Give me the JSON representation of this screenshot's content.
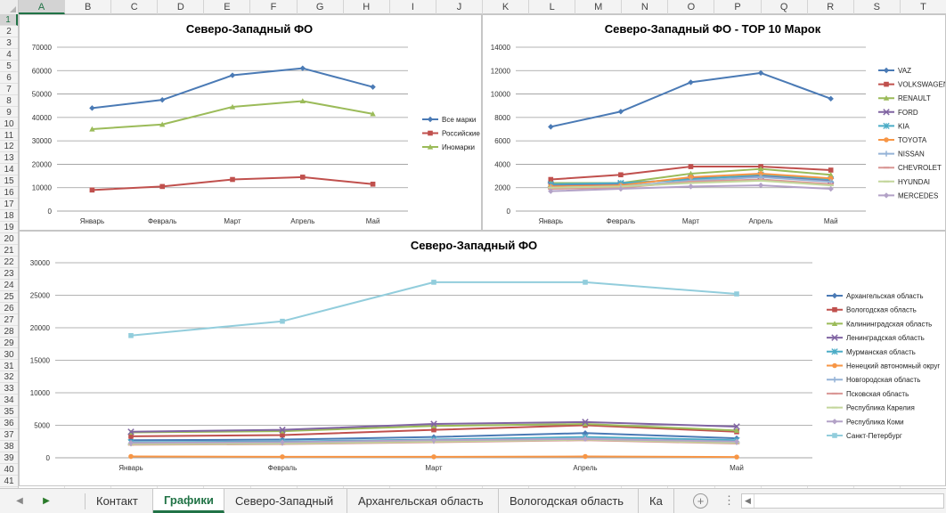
{
  "columns": [
    "A",
    "B",
    "C",
    "D",
    "E",
    "F",
    "G",
    "H",
    "I",
    "J",
    "K",
    "L",
    "M",
    "N",
    "O",
    "P",
    "Q",
    "R",
    "S",
    "T"
  ],
  "active_column": "A",
  "rows": [
    "1",
    "2",
    "3",
    "4",
    "5",
    "6",
    "7",
    "8",
    "9",
    "10",
    "11",
    "12",
    "13",
    "14",
    "15",
    "16",
    "17",
    "18",
    "19",
    "20",
    "21",
    "22",
    "23",
    "24",
    "25",
    "26",
    "27",
    "28",
    "29",
    "30",
    "31",
    "32",
    "33",
    "34",
    "35",
    "36",
    "37",
    "38",
    "39",
    "40",
    "41"
  ],
  "active_row": "1",
  "tabs": {
    "nav_prev": "◀",
    "nav_next": "▶",
    "sheets": [
      "Контакт",
      "Графики",
      "Северо-Западный",
      "Архангельская область",
      "Вологодская область",
      "Ка"
    ],
    "active_sheet": "Графики",
    "add_label": "+",
    "more_label": "⋮",
    "scroll_left": "◀"
  },
  "colors": {
    "accent": "#217346"
  },
  "chart_data": [
    {
      "type": "line",
      "title": "Северо-Западный ФО",
      "categories": [
        "Январь",
        "Февраль",
        "Март",
        "Апрель",
        "Май"
      ],
      "ylim": [
        0,
        70000
      ],
      "yticks": [
        "0",
        "10000",
        "20000",
        "30000",
        "40000",
        "50000",
        "60000",
        "70000"
      ],
      "grid": true,
      "legend": "right",
      "series": [
        {
          "name": "Все марки",
          "color": "#4a7ab5",
          "marker": "diamond",
          "values": [
            44000,
            47500,
            58000,
            61000,
            53000
          ]
        },
        {
          "name": "Российские",
          "color": "#c0504d",
          "marker": "square",
          "values": [
            9000,
            10500,
            13500,
            14500,
            11500
          ]
        },
        {
          "name": "Иномарки",
          "color": "#9bbb59",
          "marker": "triangle",
          "values": [
            35000,
            37000,
            44500,
            47000,
            41500
          ]
        }
      ]
    },
    {
      "type": "line",
      "title": "Северо-Западный ФО - TOP 10 Марок",
      "categories": [
        "Январь",
        "Февраль",
        "Март",
        "Апрель",
        "Май"
      ],
      "ylim": [
        0,
        14000
      ],
      "yticks": [
        "0",
        "2000",
        "4000",
        "6000",
        "8000",
        "10000",
        "12000",
        "14000"
      ],
      "grid": true,
      "legend": "right",
      "series": [
        {
          "name": "VAZ",
          "color": "#4a7ab5",
          "marker": "diamond",
          "values": [
            7200,
            8500,
            11000,
            11800,
            9600
          ]
        },
        {
          "name": "VOLKSWAGEN",
          "color": "#c0504d",
          "marker": "square",
          "values": [
            2700,
            3100,
            3800,
            3800,
            3500
          ]
        },
        {
          "name": "RENAULT",
          "color": "#9bbb59",
          "marker": "triangle",
          "values": [
            2400,
            2400,
            3200,
            3600,
            3100
          ]
        },
        {
          "name": "FORD",
          "color": "#8064a2",
          "marker": "x",
          "values": [
            2200,
            2300,
            2800,
            3000,
            2600
          ]
        },
        {
          "name": "KIA",
          "color": "#4bacc6",
          "marker": "star",
          "values": [
            2300,
            2400,
            2700,
            3100,
            2700
          ]
        },
        {
          "name": "TOYOTA",
          "color": "#f79646",
          "marker": "circle",
          "values": [
            2100,
            2200,
            2900,
            3200,
            2800
          ]
        },
        {
          "name": "NISSAN",
          "color": "#95b3d7",
          "marker": "plus",
          "values": [
            2000,
            2100,
            2600,
            2900,
            2500
          ]
        },
        {
          "name": "CHEVROLET",
          "color": "#d99694",
          "marker": "line",
          "values": [
            1900,
            2000,
            2500,
            2700,
            2300
          ]
        },
        {
          "name": "HYUNDAI",
          "color": "#c3d69b",
          "marker": "line",
          "values": [
            2000,
            2100,
            2400,
            2600,
            2200
          ]
        },
        {
          "name": "MERCEDES",
          "color": "#b3a2c7",
          "marker": "diamond",
          "values": [
            1700,
            1900,
            2100,
            2200,
            1900
          ]
        }
      ]
    },
    {
      "type": "line",
      "title": "Северо-Западный ФО",
      "categories": [
        "Январь",
        "Февраль",
        "Март",
        "Апрель",
        "Май"
      ],
      "ylim": [
        0,
        30000
      ],
      "yticks": [
        "0",
        "5000",
        "10000",
        "15000",
        "20000",
        "25000",
        "30000"
      ],
      "grid": true,
      "legend": "right",
      "series": [
        {
          "name": "Архангельская область",
          "color": "#4a7ab5",
          "marker": "diamond",
          "values": [
            2700,
            2800,
            3200,
            3800,
            3000
          ]
        },
        {
          "name": "Вологодская область",
          "color": "#c0504d",
          "marker": "square",
          "values": [
            3300,
            3500,
            4300,
            5000,
            4000
          ]
        },
        {
          "name": "Калининградская область",
          "color": "#9bbb59",
          "marker": "triangle",
          "values": [
            3900,
            4100,
            4900,
            5200,
            4200
          ]
        },
        {
          "name": "Ленинградская область",
          "color": "#8064a2",
          "marker": "x",
          "values": [
            4000,
            4300,
            5200,
            5500,
            4800
          ]
        },
        {
          "name": "Мурманская область",
          "color": "#4bacc6",
          "marker": "star",
          "values": [
            2400,
            2500,
            2800,
            3200,
            2700
          ]
        },
        {
          "name": "Ненецкий автономный округ",
          "color": "#f79646",
          "marker": "circle",
          "values": [
            200,
            150,
            150,
            200,
            120
          ]
        },
        {
          "name": "Новгородская область",
          "color": "#95b3d7",
          "marker": "plus",
          "values": [
            2200,
            2300,
            2600,
            3000,
            2400
          ]
        },
        {
          "name": "Псковская область",
          "color": "#d99694",
          "marker": "line",
          "values": [
            2000,
            2100,
            2400,
            2700,
            2200
          ]
        },
        {
          "name": "Республика Карелия",
          "color": "#c3d69b",
          "marker": "line",
          "values": [
            2100,
            2200,
            2500,
            2800,
            2300
          ]
        },
        {
          "name": "Республика Коми",
          "color": "#b3a2c7",
          "marker": "diamond",
          "values": [
            2300,
            2400,
            2700,
            2900,
            2500
          ]
        },
        {
          "name": "Санкт-Петербург",
          "color": "#92cddc",
          "marker": "square",
          "values": [
            18800,
            21000,
            27000,
            27000,
            25200
          ]
        }
      ]
    }
  ]
}
